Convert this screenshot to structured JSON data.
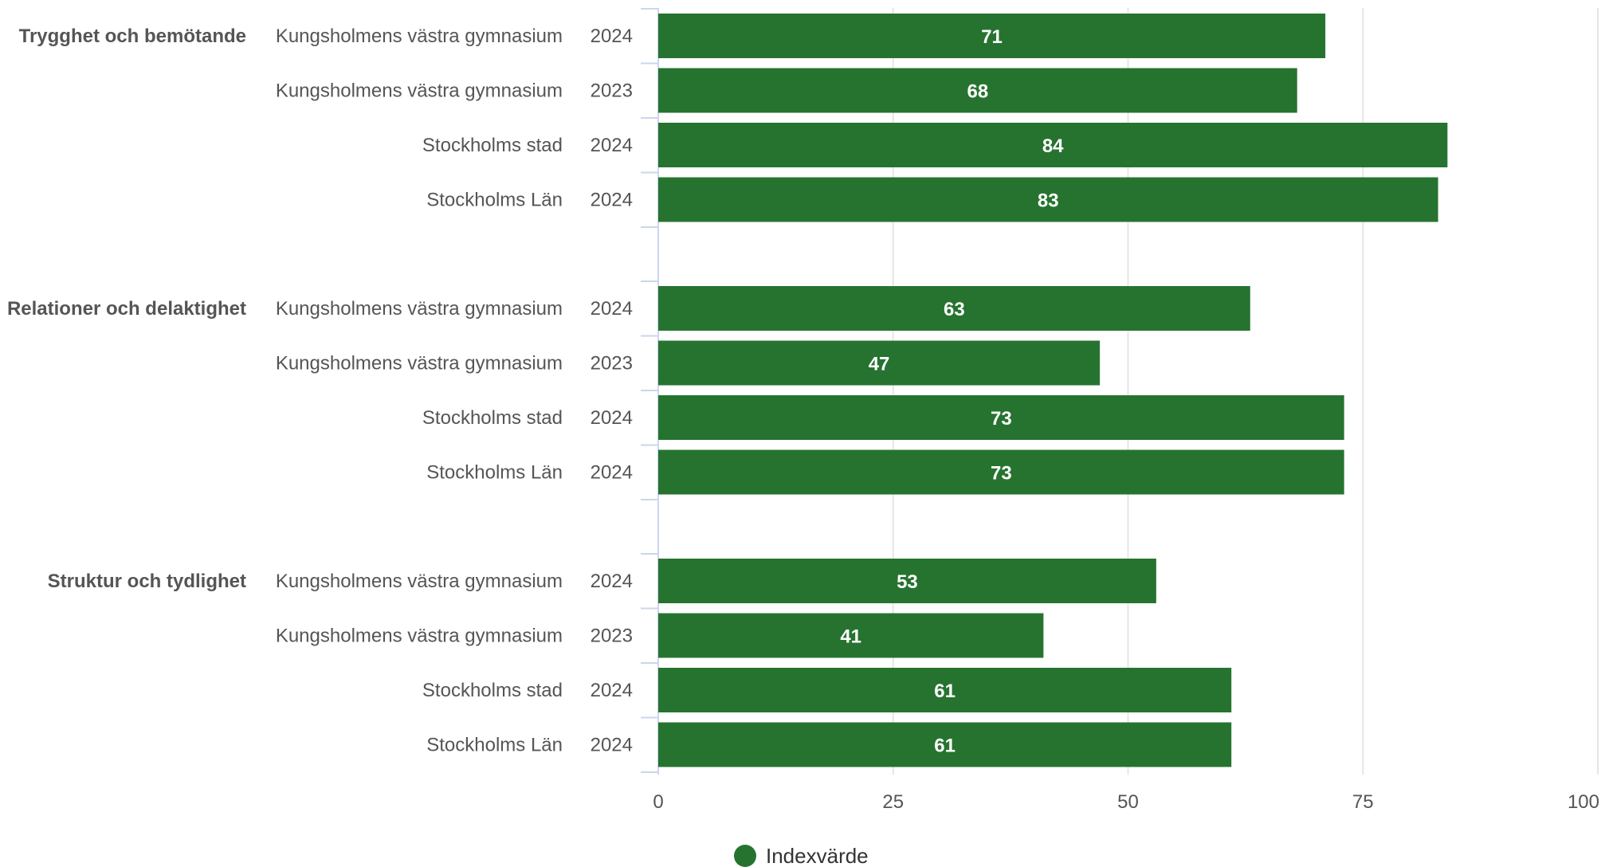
{
  "chart_data": {
    "type": "bar",
    "orientation": "horizontal",
    "xlim": [
      0,
      100
    ],
    "x_ticks": [
      "0",
      "25",
      "50",
      "75",
      "100"
    ],
    "grid": true,
    "legend": {
      "placement": "bottom",
      "entries": [
        "Indexvärde"
      ]
    },
    "colors": {
      "bar": "#267330",
      "grid": "#e6e6e6",
      "axis": "#ccd6eb"
    },
    "series": [
      {
        "name": "Indexvärde"
      }
    ],
    "groups": [
      {
        "label": "Trygghet och bemötande",
        "rows": [
          {
            "entity": "Kungsholmens västra gymnasium",
            "year": "2024",
            "value": 71
          },
          {
            "entity": "Kungsholmens västra gymnasium",
            "year": "2023",
            "value": 68
          },
          {
            "entity": "Stockholms stad",
            "year": "2024",
            "value": 84
          },
          {
            "entity": "Stockholms Län",
            "year": "2024",
            "value": 83
          }
        ]
      },
      {
        "label": "Relationer och delaktighet",
        "rows": [
          {
            "entity": "Kungsholmens västra gymnasium",
            "year": "2024",
            "value": 63
          },
          {
            "entity": "Kungsholmens västra gymnasium",
            "year": "2023",
            "value": 47
          },
          {
            "entity": "Stockholms stad",
            "year": "2024",
            "value": 73
          },
          {
            "entity": "Stockholms Län",
            "year": "2024",
            "value": 73
          }
        ]
      },
      {
        "label": "Struktur och tydlighet",
        "rows": [
          {
            "entity": "Kungsholmens västra gymnasium",
            "year": "2024",
            "value": 53
          },
          {
            "entity": "Kungsholmens västra gymnasium",
            "year": "2023",
            "value": 41
          },
          {
            "entity": "Stockholms stad",
            "year": "2024",
            "value": 61
          },
          {
            "entity": "Stockholms Län",
            "year": "2024",
            "value": 61
          }
        ]
      }
    ]
  }
}
